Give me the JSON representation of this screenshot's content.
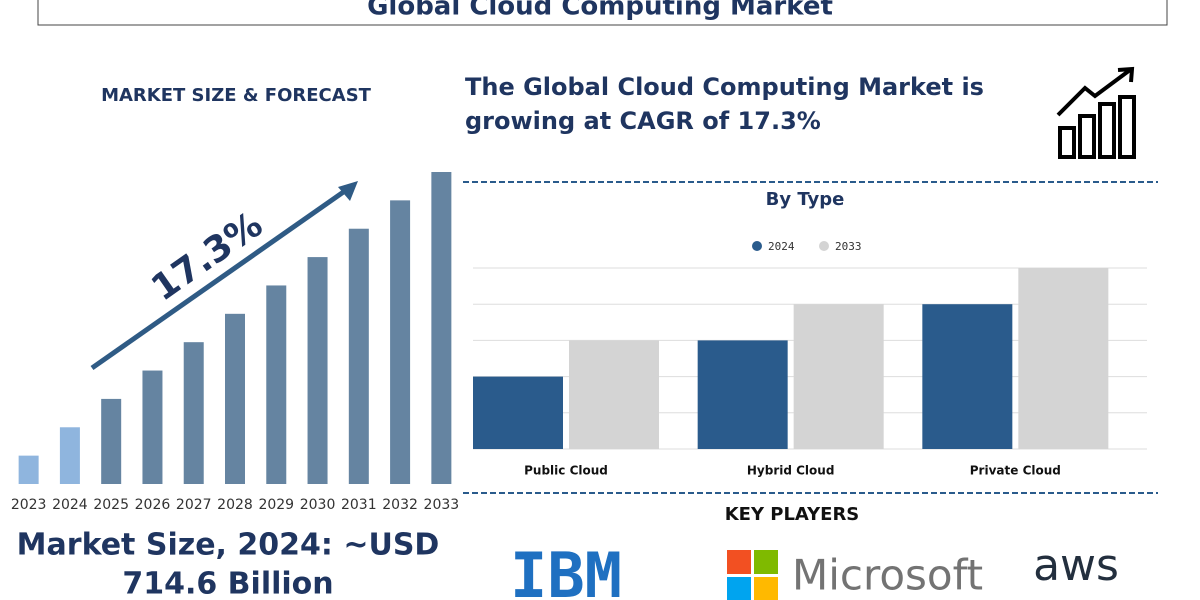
{
  "header": {
    "title": "Global Cloud Computing Market"
  },
  "headline": "The Global Cloud Computing Market is growing at CAGR of 17.3%",
  "market_size": [
    "Market Size, 2024: ~USD",
    "714.6 Billion"
  ],
  "key_players": {
    "title": "KEY PLAYERS",
    "logos": [
      "IBM",
      "Microsoft",
      "aws"
    ]
  },
  "chart_data": [
    {
      "type": "bar",
      "title": "MARKET SIZE & FORECAST",
      "categories": [
        "2023",
        "2024",
        "2025",
        "2026",
        "2027",
        "2028",
        "2029",
        "2030",
        "2031",
        "2032",
        "2033"
      ],
      "values": [
        1,
        2,
        3,
        4,
        5,
        6,
        7,
        8,
        9,
        10,
        11
      ],
      "colors": [
        "#8fb5de",
        "#8fb5de",
        "#6584a1",
        "#6584a1",
        "#6584a1",
        "#6584a1",
        "#6584a1",
        "#6584a1",
        "#6584a1",
        "#6584a1",
        "#6584a1"
      ],
      "ylim": [
        0,
        11
      ],
      "annotation": "17.3%"
    },
    {
      "type": "grouped-bar",
      "title": "By Type",
      "categories": [
        "Public Cloud",
        "Hybrid Cloud",
        "Private Cloud"
      ],
      "series": [
        {
          "name": "2024",
          "color": "#2a5b8c",
          "values": [
            2,
            3,
            4
          ]
        },
        {
          "name": "2033",
          "color": "#d4d4d4",
          "values": [
            3,
            4,
            5
          ]
        }
      ],
      "ylim": [
        0,
        5
      ],
      "yticks": [
        0,
        1,
        2,
        3,
        4,
        5
      ],
      "grid": true
    }
  ]
}
